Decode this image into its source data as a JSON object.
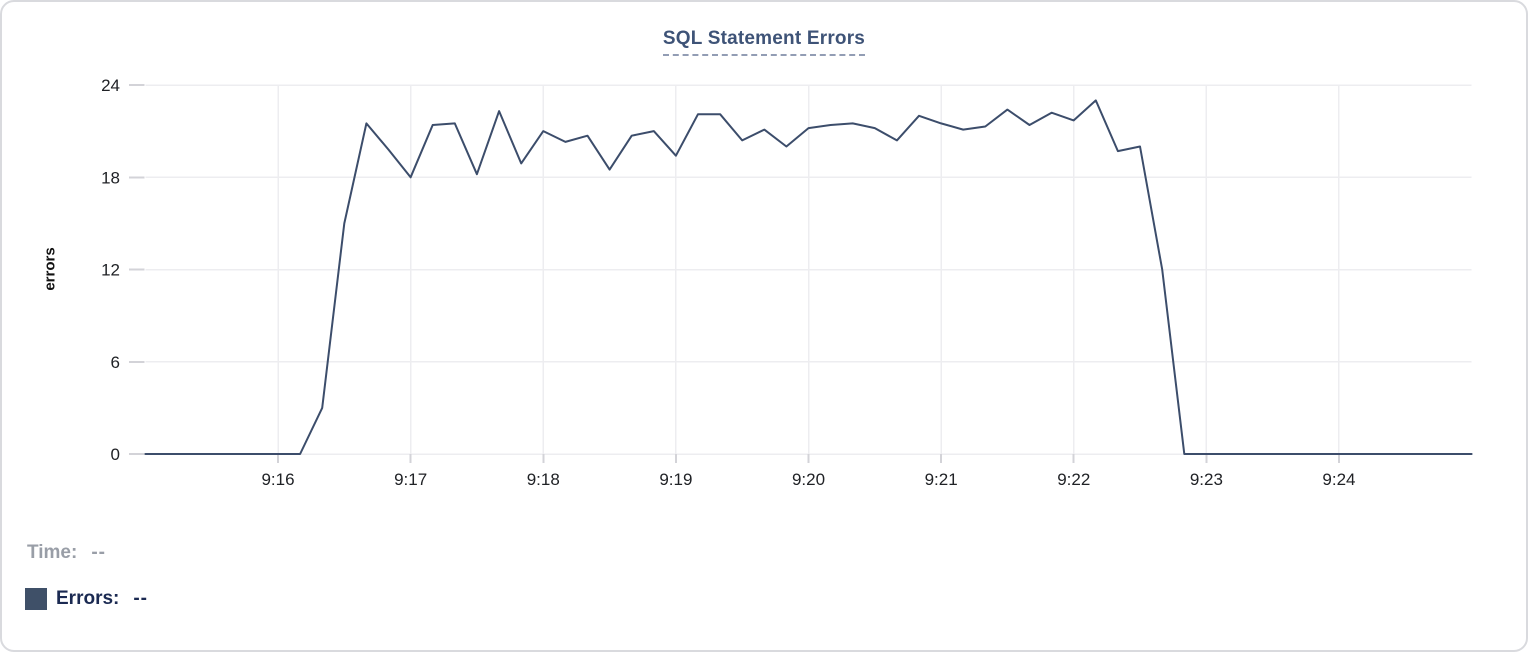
{
  "card": {
    "background_color": "#ffffff",
    "border_color": "#d9dade"
  },
  "title": {
    "text": "SQL Statement Errors",
    "color": "#3e5377",
    "underline_color": "#929db4"
  },
  "readout": {
    "time_label": "Time:",
    "time_value": "--",
    "time_color": "#999ea7",
    "errors_label": "Errors:",
    "errors_value": "--",
    "errors_color": "#1b2a52",
    "swatch_color": "#3f5068"
  },
  "chart_data": {
    "type": "line",
    "title": "SQL Statement Errors",
    "xlabel": "",
    "ylabel": "errors",
    "ylim": [
      0,
      24
    ],
    "yticks": [
      0,
      6,
      12,
      18,
      24
    ],
    "xticks": [
      "9:16",
      "9:17",
      "9:18",
      "9:19",
      "9:20",
      "9:21",
      "9:22",
      "9:23",
      "9:24"
    ],
    "x_start": "9:15:00",
    "x_end": "9:25:00",
    "interval_seconds": 10,
    "grid": true,
    "legend_position": "none",
    "grid_color": "#ededf0",
    "tick_color": "#d3d3d8",
    "axis_text_color": "#202226",
    "series": [
      {
        "name": "Errors",
        "color": "#3c4d6b",
        "values": [
          0,
          0,
          0,
          0,
          0,
          0,
          0,
          0,
          3,
          15,
          21.5,
          19.8,
          18,
          21.4,
          21.5,
          18.2,
          22.3,
          18.9,
          21,
          20.3,
          20.7,
          18.5,
          20.7,
          21,
          19.4,
          22.1,
          22.1,
          20.4,
          21.1,
          20,
          21.2,
          21.4,
          21.5,
          21.2,
          20.4,
          22,
          21.5,
          21.1,
          21.3,
          22.4,
          21.4,
          22.2,
          21.7,
          23,
          19.7,
          20,
          12,
          0,
          0,
          0,
          0,
          0,
          0,
          0,
          0,
          0,
          0,
          0,
          0,
          0,
          0
        ]
      }
    ]
  }
}
